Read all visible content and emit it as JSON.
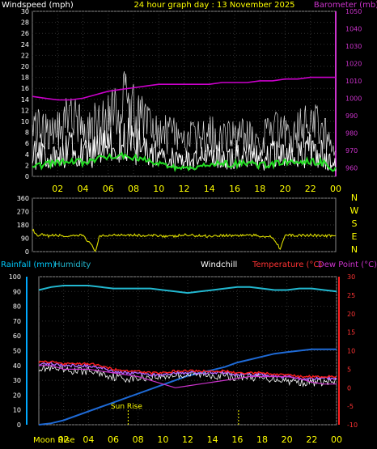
{
  "colors": {
    "wind": "#ffffff",
    "gust": "#ffffff",
    "wind_avg": "#22dd22",
    "barometer": "#cc00cc",
    "direction": "#dddd00",
    "rain": "#1e6ad6",
    "humidity": "#22b8d0",
    "temperature": "#ff2020",
    "dewpoint": "#cc33cc",
    "windchill": "#ffffff",
    "text_yellow": "#ffff00",
    "text_cyan": "#00ccff",
    "text_magenta": "#cc33cc",
    "text_red": "#ff3333",
    "text_white": "#ffffff"
  },
  "chart_data": [
    {
      "type": "line",
      "panel": "wind-barometer",
      "title": "24 hour graph day : 13 November 2025",
      "left_label": "Windspeed (mph)",
      "right_label": "Barometer (mb)",
      "x_ticks": [
        "02",
        "04",
        "06",
        "08",
        "10",
        "12",
        "14",
        "16",
        "18",
        "20",
        "22",
        "00"
      ],
      "ylim_left": [
        0,
        30
      ],
      "y_ticks_left": [
        "0",
        "2",
        "4",
        "6",
        "8",
        "10",
        "12",
        "14",
        "16",
        "18",
        "20",
        "22",
        "24",
        "26",
        "28",
        "30"
      ],
      "ylim_right": [
        955,
        1050
      ],
      "y_ticks_right": [
        "960",
        "970",
        "980",
        "990",
        "1000",
        "1010",
        "1020",
        "1030",
        "1040",
        "1050"
      ],
      "series": [
        {
          "role": "gust",
          "x": [
            0,
            1,
            2,
            3,
            4,
            5,
            6,
            7,
            8,
            9,
            10,
            11,
            12,
            13,
            14,
            15,
            16,
            17,
            18,
            19,
            20,
            21,
            22,
            23,
            24
          ],
          "values": [
            12,
            13,
            13,
            16,
            13,
            14,
            15,
            20,
            18,
            13,
            12,
            11,
            10,
            10,
            11,
            11,
            11,
            11,
            10,
            12,
            12,
            12,
            14,
            13,
            6
          ]
        },
        {
          "role": "wind",
          "x": [
            0,
            1,
            2,
            3,
            4,
            5,
            6,
            7,
            8,
            9,
            10,
            11,
            12,
            13,
            14,
            15,
            16,
            17,
            18,
            19,
            20,
            21,
            22,
            23,
            24
          ],
          "values": [
            6,
            6,
            5,
            8,
            6,
            7,
            8,
            10,
            10,
            7,
            6,
            5,
            4,
            5,
            6,
            6,
            6,
            6,
            5,
            6,
            7,
            6,
            7,
            6,
            3
          ]
        },
        {
          "role": "wind_avg",
          "x": [
            0,
            1,
            2,
            3,
            4,
            5,
            6,
            7,
            8,
            9,
            10,
            11,
            12,
            13,
            14,
            15,
            16,
            17,
            18,
            19,
            20,
            21,
            22,
            23,
            24
          ],
          "values": [
            1.5,
            2.2,
            2.5,
            3,
            2.5,
            3,
            3.5,
            3.8,
            3.5,
            2.8,
            2.2,
            1.8,
            1.5,
            1.8,
            2.2,
            2.3,
            2.2,
            2.3,
            2,
            2.2,
            2.6,
            2.4,
            2.8,
            2.4,
            1.2
          ]
        },
        {
          "role": "barometer",
          "x": [
            0,
            1,
            2,
            3,
            4,
            5,
            6,
            7,
            8,
            9,
            10,
            11,
            12,
            13,
            14,
            15,
            16,
            17,
            18,
            19,
            20,
            21,
            22,
            23,
            24
          ],
          "values": [
            1001,
            1000,
            999,
            999,
            1000,
            1002,
            1004,
            1005,
            1006,
            1007,
            1008,
            1008,
            1008,
            1008,
            1008,
            1009,
            1009,
            1009,
            1010,
            1010,
            1011,
            1011,
            1012,
            1012,
            1012
          ]
        }
      ]
    },
    {
      "type": "line",
      "panel": "wind-direction",
      "ylim": [
        0,
        360
      ],
      "y_ticks": [
        "0",
        "90",
        "180",
        "270",
        "360"
      ],
      "compass": [
        "N",
        "W",
        "S",
        "E",
        "N"
      ],
      "series": [
        {
          "role": "direction",
          "x": [
            0,
            0.4,
            0.8,
            1,
            2,
            3,
            4,
            4.5,
            5,
            5.3,
            6,
            7,
            8,
            9,
            10,
            11,
            12,
            13,
            14,
            15,
            16,
            17,
            18,
            19,
            19.6,
            20,
            21,
            22,
            23,
            24
          ],
          "values": [
            150,
            100,
            115,
            105,
            110,
            100,
            112,
            60,
            5,
            100,
            110,
            115,
            112,
            105,
            110,
            100,
            112,
            108,
            105,
            110,
            108,
            112,
            105,
            100,
            20,
            110,
            108,
            112,
            105,
            108
          ]
        }
      ]
    },
    {
      "type": "line",
      "panel": "rain-humidity-temperature",
      "labels": {
        "rainfall": "Rainfall (mm)",
        "humidity": "Humidity",
        "windchill": "Windchill",
        "temperature": "Temperature (°C)",
        "dewpoint": "Dew Point (°C)"
      },
      "ylim_left": [
        0,
        100
      ],
      "y_ticks_left": [
        "0",
        "10",
        "20",
        "30",
        "40",
        "50",
        "60",
        "70",
        "80",
        "90",
        "100"
      ],
      "ylim_right": [
        -10,
        30
      ],
      "y_ticks_right": [
        "-10",
        "-5",
        "0",
        "5",
        "10",
        "15",
        "20",
        "25",
        "30"
      ],
      "x_ticks": [
        "02",
        "04",
        "06",
        "08",
        "10",
        "12",
        "14",
        "16",
        "18",
        "20",
        "22",
        "00"
      ],
      "events": [
        {
          "label": "Sun Rise",
          "hour": 7.2
        },
        {
          "label": "",
          "hour": 16.1
        }
      ],
      "moon_rise": "Moon Rise",
      "series": [
        {
          "role": "humidity",
          "x": [
            0,
            1,
            2,
            3,
            4,
            5,
            6,
            7,
            8,
            9,
            10,
            11,
            12,
            13,
            14,
            15,
            16,
            17,
            18,
            19,
            20,
            21,
            22,
            23,
            24
          ],
          "values": [
            91,
            93,
            94,
            94,
            94,
            93,
            92,
            92,
            92,
            92,
            91,
            90,
            89,
            90,
            91,
            92,
            93,
            93,
            92,
            91,
            91,
            92,
            92,
            91,
            90
          ]
        },
        {
          "role": "rainfall",
          "x": [
            0,
            1,
            2,
            3,
            4,
            5,
            6,
            7,
            8,
            9,
            10,
            11,
            12,
            13,
            14,
            15,
            16,
            17,
            18,
            19,
            20,
            21,
            22,
            23,
            24
          ],
          "values": [
            0,
            1,
            3,
            6,
            9,
            12,
            15,
            18,
            21,
            24,
            27,
            30,
            33,
            35,
            37,
            39,
            42,
            44,
            46,
            48,
            49,
            50,
            51,
            51,
            51
          ]
        },
        {
          "role": "temperature",
          "x": [
            0,
            1,
            2,
            3,
            4,
            5,
            6,
            7,
            8,
            9,
            10,
            11,
            12,
            13,
            14,
            15,
            16,
            17,
            18,
            19,
            20,
            21,
            22,
            23,
            24
          ],
          "values": [
            7,
            7,
            6.5,
            6.5,
            6.5,
            6,
            5,
            4.5,
            4.5,
            4,
            4,
            4.5,
            4.5,
            4.5,
            4.5,
            4.5,
            4,
            4,
            4,
            3.5,
            3.5,
            3,
            3,
            3,
            3
          ]
        },
        {
          "role": "dewpoint",
          "x": [
            0,
            1,
            2,
            3,
            4,
            5,
            6,
            7,
            8,
            9,
            10,
            11,
            12,
            13,
            14,
            15,
            16,
            17,
            18,
            19,
            20,
            21,
            22,
            23,
            24
          ],
          "values": [
            6.5,
            6.5,
            6,
            6,
            6,
            5.5,
            4.5,
            4,
            4,
            3.5,
            3.5,
            4,
            4,
            4,
            4,
            4,
            3.5,
            3.5,
            3.5,
            3,
            3,
            2.5,
            2.5,
            2.5,
            2.5
          ]
        },
        {
          "role": "windchill",
          "x": [
            0,
            1,
            2,
            3,
            4,
            5,
            6,
            7,
            8,
            9,
            10,
            11,
            12,
            13,
            14,
            15,
            16,
            17,
            18,
            19,
            20,
            21,
            22,
            23,
            24
          ],
          "values": [
            5.5,
            5,
            4.5,
            4.5,
            4.5,
            4,
            3,
            2.5,
            2.5,
            3,
            3,
            3.5,
            3.5,
            3.5,
            3.5,
            3,
            3,
            3,
            2.5,
            2.5,
            2,
            1.5,
            1.5,
            1.5,
            1.5
          ]
        },
        {
          "role": "temp_magenta",
          "x": [
            0,
            1,
            2,
            3,
            4,
            5,
            6,
            7,
            8,
            9,
            10,
            11,
            12,
            13,
            14,
            15,
            16,
            17,
            18,
            19,
            20,
            21,
            22,
            23,
            24
          ],
          "values": [
            6,
            6,
            5,
            5,
            5,
            4.5,
            4,
            3.5,
            3,
            2,
            1,
            0,
            0.5,
            1,
            1.5,
            2,
            2.5,
            3,
            3,
            3,
            3,
            2.5,
            1.5,
            1,
            1
          ]
        }
      ]
    }
  ]
}
